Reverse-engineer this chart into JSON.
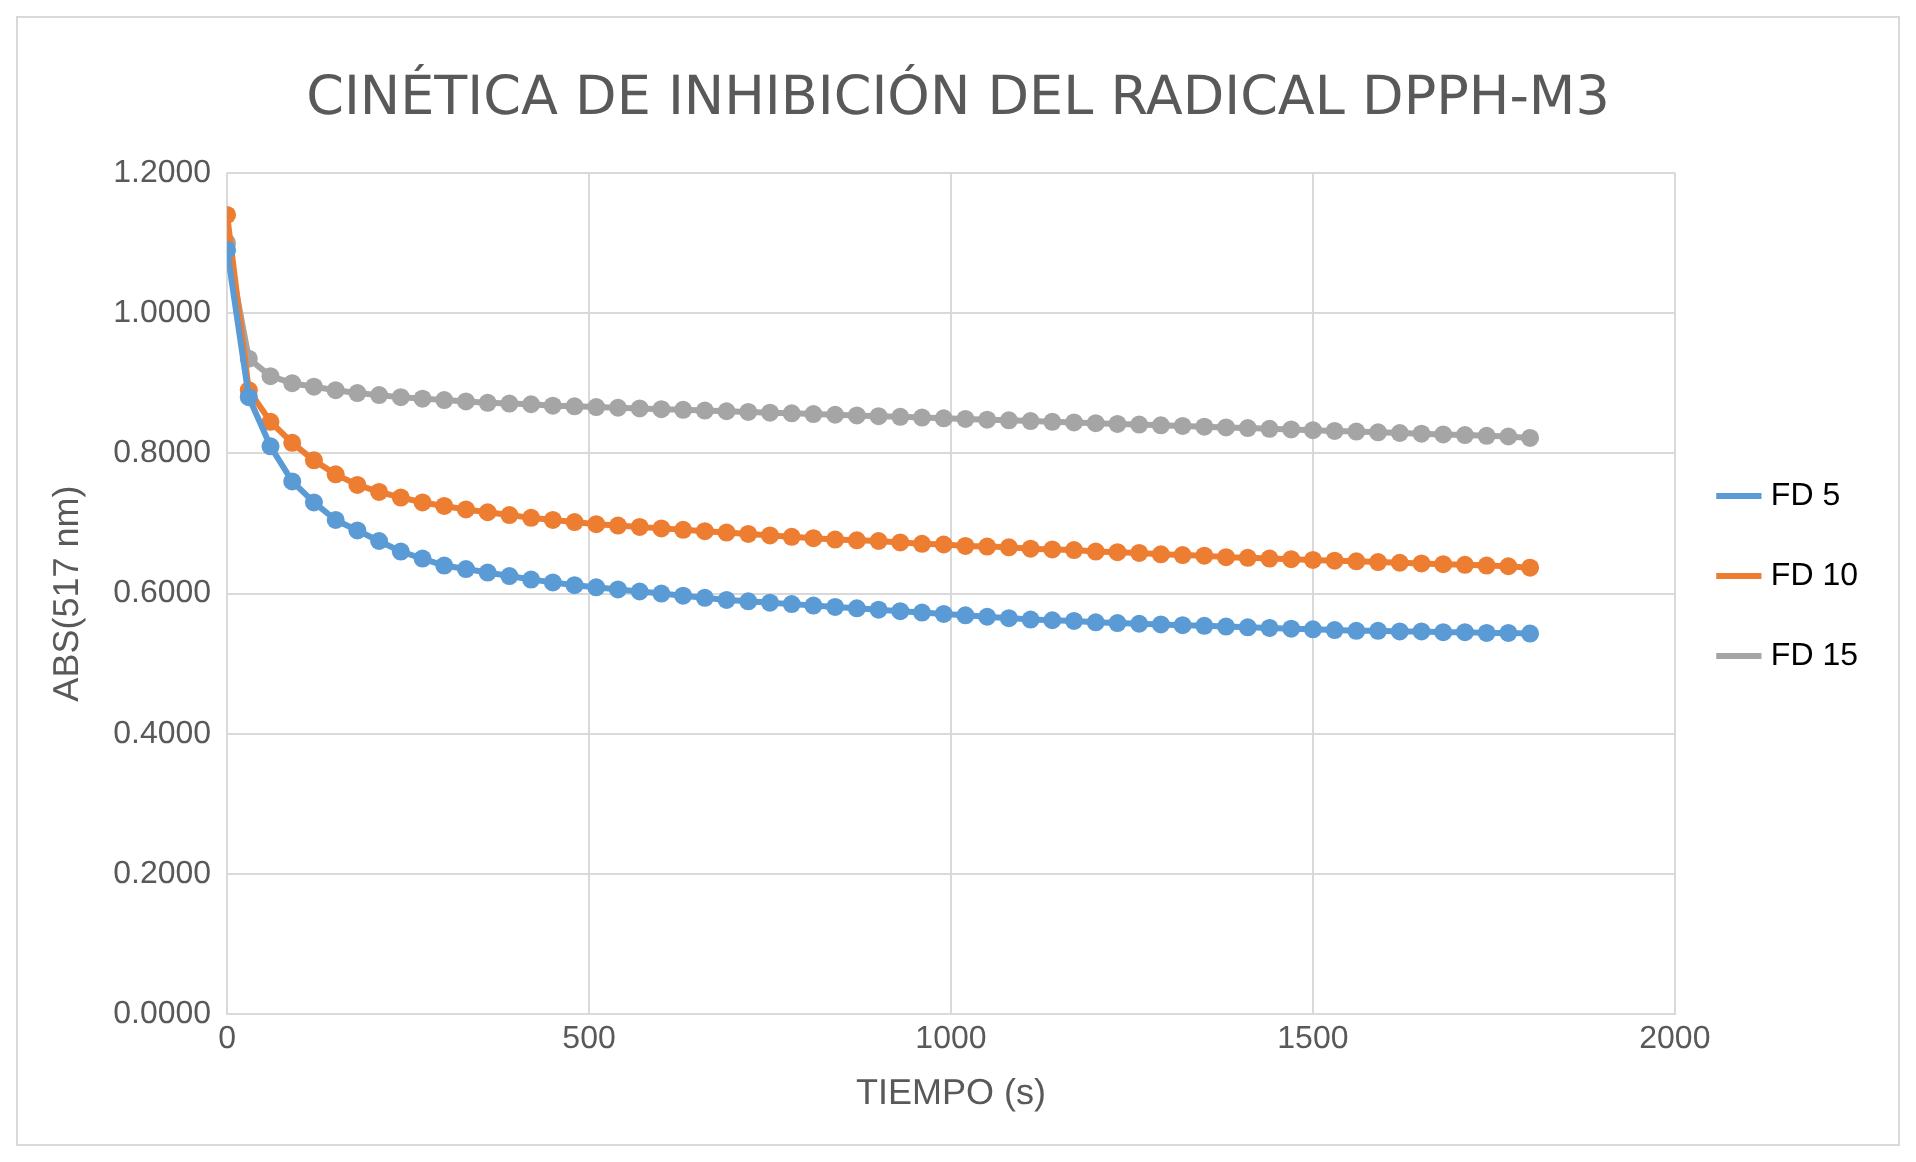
{
  "chart_data": {
    "type": "line",
    "title": "CINÉTICA DE INHIBICIÓN DEL RADICAL DPPH-M3",
    "xlabel": "TIEMPO (s)",
    "ylabel": "ABS(517 nm)",
    "x": [
      0,
      30,
      60,
      90,
      120,
      150,
      180,
      210,
      240,
      270,
      300,
      330,
      360,
      390,
      420,
      450,
      480,
      510,
      540,
      570,
      600,
      630,
      660,
      690,
      720,
      750,
      780,
      810,
      840,
      870,
      900,
      930,
      960,
      990,
      1020,
      1050,
      1080,
      1110,
      1140,
      1170,
      1200,
      1230,
      1260,
      1290,
      1320,
      1350,
      1380,
      1410,
      1440,
      1470,
      1500,
      1530,
      1560,
      1590,
      1620,
      1650,
      1680,
      1710,
      1740,
      1770,
      1800
    ],
    "series": [
      {
        "name": "FD 5",
        "color": "#5b9bd5",
        "values": [
          1.09,
          0.88,
          0.81,
          0.76,
          0.73,
          0.705,
          0.69,
          0.675,
          0.66,
          0.65,
          0.64,
          0.635,
          0.63,
          0.625,
          0.62,
          0.616,
          0.612,
          0.609,
          0.606,
          0.603,
          0.6,
          0.597,
          0.594,
          0.591,
          0.589,
          0.587,
          0.585,
          0.583,
          0.581,
          0.579,
          0.577,
          0.575,
          0.573,
          0.571,
          0.569,
          0.567,
          0.565,
          0.563,
          0.562,
          0.561,
          0.559,
          0.558,
          0.557,
          0.556,
          0.555,
          0.554,
          0.553,
          0.552,
          0.551,
          0.55,
          0.549,
          0.548,
          0.547,
          0.547,
          0.546,
          0.546,
          0.545,
          0.545,
          0.544,
          0.544,
          0.543
        ]
      },
      {
        "name": "FD 10",
        "color": "#ed7d31",
        "values": [
          1.14,
          0.89,
          0.845,
          0.815,
          0.79,
          0.77,
          0.755,
          0.745,
          0.737,
          0.73,
          0.725,
          0.72,
          0.716,
          0.712,
          0.708,
          0.705,
          0.702,
          0.699,
          0.697,
          0.695,
          0.693,
          0.691,
          0.689,
          0.687,
          0.685,
          0.683,
          0.681,
          0.679,
          0.677,
          0.676,
          0.675,
          0.673,
          0.671,
          0.67,
          0.668,
          0.667,
          0.666,
          0.664,
          0.663,
          0.662,
          0.66,
          0.659,
          0.658,
          0.656,
          0.655,
          0.654,
          0.652,
          0.651,
          0.65,
          0.649,
          0.648,
          0.647,
          0.646,
          0.645,
          0.644,
          0.643,
          0.642,
          0.641,
          0.64,
          0.639,
          0.637
        ]
      },
      {
        "name": "FD 15",
        "color": "#a5a5a5",
        "values": [
          1.1,
          0.935,
          0.91,
          0.9,
          0.895,
          0.89,
          0.886,
          0.883,
          0.88,
          0.878,
          0.876,
          0.874,
          0.872,
          0.871,
          0.87,
          0.868,
          0.867,
          0.866,
          0.865,
          0.864,
          0.863,
          0.862,
          0.861,
          0.86,
          0.859,
          0.858,
          0.857,
          0.856,
          0.855,
          0.854,
          0.853,
          0.852,
          0.851,
          0.85,
          0.849,
          0.848,
          0.847,
          0.846,
          0.845,
          0.844,
          0.843,
          0.842,
          0.841,
          0.84,
          0.839,
          0.838,
          0.837,
          0.836,
          0.835,
          0.834,
          0.833,
          0.832,
          0.831,
          0.83,
          0.829,
          0.828,
          0.827,
          0.826,
          0.825,
          0.824,
          0.822
        ]
      }
    ],
    "xlim": [
      0,
      2000
    ],
    "xticks": [
      0,
      500,
      1000,
      1500,
      2000
    ],
    "ylim": [
      0,
      1.2
    ],
    "yticks": [
      {
        "value": 0,
        "label": "0.0000"
      },
      {
        "value": 0.2,
        "label": "0.2000"
      },
      {
        "value": 0.4,
        "label": "0.4000"
      },
      {
        "value": 0.6,
        "label": "0.6000"
      },
      {
        "value": 0.8,
        "label": "0.8000"
      },
      {
        "value": 1,
        "label": "1.0000"
      },
      {
        "value": 1.2,
        "label": "1.2000"
      }
    ],
    "grid": true,
    "legend": "right",
    "marker": "circle",
    "line_style": "solid"
  }
}
